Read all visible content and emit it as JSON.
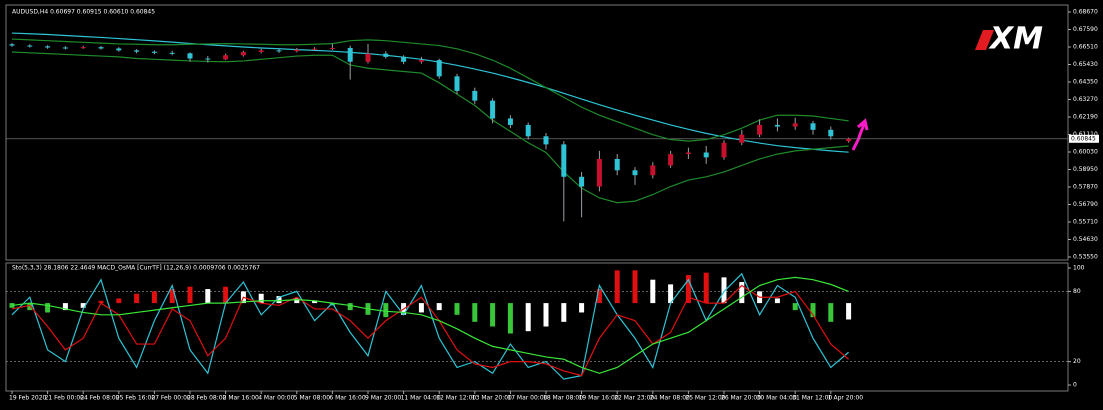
{
  "logo": "XM",
  "chart_data": [
    {
      "type": "candlestick",
      "title": "AUDUSD,H4  0.60697 0.60915 0.60610 0.60845",
      "up_color": "#c8102e",
      "down_color": "#2ec4d6",
      "wick_color": "#9aa0a6",
      "categories": [
        "19 Feb 2020",
        null,
        "21 Feb 00:00",
        null,
        "24 Feb 08:00",
        null,
        "25 Feb 16:00",
        null,
        "27 Feb 00:00",
        null,
        "28 Feb 08:00",
        null,
        "2 Mar 16:00",
        null,
        "4 Mar 00:00",
        null,
        "5 Mar 08:00",
        null,
        "6 Mar 16:00",
        null,
        "9 Mar 20:00",
        null,
        "11 Mar 04:00",
        null,
        "12 Mar 12:00",
        null,
        "13 Mar 20:00",
        null,
        "17 Mar 00:00",
        null,
        "18 Mar 08:00",
        null,
        "19 Mar 16:00",
        null,
        "22 Mar 23:00",
        null,
        "24 Mar 08:00",
        null,
        "25 Mar 12:00",
        null,
        "26 Mar 20:00",
        null,
        "30 Mar 04:00",
        null,
        "31 Mar 12:00",
        null,
        "1 Apr 20:00",
        null
      ],
      "ohlc": [
        [
          0.6668,
          0.6675,
          0.6652,
          0.666
        ],
        [
          0.666,
          0.6668,
          0.6648,
          0.6655
        ],
        [
          0.6655,
          0.6662,
          0.664,
          0.6648
        ],
        [
          0.6648,
          0.6656,
          0.6636,
          0.6645
        ],
        [
          0.6645,
          0.6658,
          0.664,
          0.665
        ],
        [
          0.665,
          0.6657,
          0.6635,
          0.6642
        ],
        [
          0.6642,
          0.665,
          0.6622,
          0.663
        ],
        [
          0.663,
          0.6638,
          0.6612,
          0.6622
        ],
        [
          0.6622,
          0.663,
          0.6606,
          0.6615
        ],
        [
          0.6615,
          0.6628,
          0.66,
          0.6612
        ],
        [
          0.6612,
          0.6618,
          0.656,
          0.658
        ],
        [
          0.658,
          0.6595,
          0.6555,
          0.6575
        ],
        [
          0.6575,
          0.661,
          0.657,
          0.66
        ],
        [
          0.66,
          0.6628,
          0.6592,
          0.662
        ],
        [
          0.662,
          0.664,
          0.6612,
          0.663
        ],
        [
          0.663,
          0.6638,
          0.6615,
          0.6625
        ],
        [
          0.6625,
          0.6645,
          0.6618,
          0.6635
        ],
        [
          0.6635,
          0.665,
          0.6628,
          0.664
        ],
        [
          0.664,
          0.6672,
          0.6632,
          0.6645
        ],
        [
          0.6645,
          0.666,
          0.645,
          0.656
        ],
        [
          0.656,
          0.667,
          0.655,
          0.661
        ],
        [
          0.661,
          0.6625,
          0.658,
          0.659
        ],
        [
          0.659,
          0.66,
          0.6545,
          0.656
        ],
        [
          0.656,
          0.659,
          0.6548,
          0.657
        ],
        [
          0.657,
          0.6578,
          0.6455,
          0.647
        ],
        [
          0.647,
          0.6485,
          0.636,
          0.638
        ],
        [
          0.638,
          0.64,
          0.63,
          0.632
        ],
        [
          0.632,
          0.6335,
          0.618,
          0.621
        ],
        [
          0.621,
          0.623,
          0.615,
          0.617
        ],
        [
          0.617,
          0.6185,
          0.608,
          0.61
        ],
        [
          0.61,
          0.612,
          0.602,
          0.605
        ],
        [
          0.605,
          0.607,
          0.5575,
          0.585
        ],
        [
          0.585,
          0.588,
          0.56,
          0.579
        ],
        [
          0.579,
          0.601,
          0.576,
          0.596
        ],
        [
          0.596,
          0.599,
          0.586,
          0.589
        ],
        [
          0.589,
          0.591,
          0.58,
          0.586
        ],
        [
          0.586,
          0.594,
          0.584,
          0.592
        ],
        [
          0.592,
          0.601,
          0.5905,
          0.599
        ],
        [
          0.599,
          0.603,
          0.596,
          0.6
        ],
        [
          0.6,
          0.604,
          0.593,
          0.597
        ],
        [
          0.597,
          0.6075,
          0.5955,
          0.606
        ],
        [
          0.606,
          0.614,
          0.6045,
          0.611
        ],
        [
          0.611,
          0.6205,
          0.6095,
          0.617
        ],
        [
          0.617,
          0.621,
          0.613,
          0.616
        ],
        [
          0.616,
          0.6215,
          0.614,
          0.618
        ],
        [
          0.618,
          0.6195,
          0.611,
          0.614
        ],
        [
          0.614,
          0.616,
          0.608,
          0.61
        ],
        [
          0.60697,
          0.60915,
          0.6061,
          0.60845
        ]
      ],
      "series": [
        {
          "color": "#2ec4d6",
          "values": [
            0.6737,
            0.6733,
            0.6728,
            0.6722,
            0.6716,
            0.671,
            0.6703,
            0.6696,
            0.6689,
            0.6681,
            0.6673,
            0.6665,
            0.6658,
            0.6651,
            0.6645,
            0.664,
            0.6635,
            0.663,
            0.6625,
            0.6618,
            0.661,
            0.66,
            0.6588,
            0.6575,
            0.6558,
            0.6538,
            0.6515,
            0.649,
            0.6462,
            0.6432,
            0.64,
            0.6365,
            0.633,
            0.6295,
            0.6262,
            0.623,
            0.62,
            0.617,
            0.6143,
            0.6118,
            0.6096,
            0.6076,
            0.6058,
            0.6042,
            0.603,
            0.602,
            0.601,
            0.6002
          ]
        },
        {
          "color": "#1f8a2a",
          "values": [
            0.67,
            0.6695,
            0.669,
            0.6685,
            0.668,
            0.6675,
            0.667,
            0.6668,
            0.6665,
            0.6665,
            0.6668,
            0.667,
            0.6672,
            0.667,
            0.6668,
            0.6665,
            0.6665,
            0.6668,
            0.6672,
            0.669,
            0.6695,
            0.669,
            0.668,
            0.667,
            0.666,
            0.664,
            0.661,
            0.657,
            0.652,
            0.646,
            0.64,
            0.634,
            0.628,
            0.623,
            0.619,
            0.615,
            0.611,
            0.608,
            0.607,
            0.608,
            0.611,
            0.615,
            0.62,
            0.623,
            0.623,
            0.6225,
            0.621,
            0.6195
          ]
        },
        {
          "color": "#1f8a2a",
          "values": [
            0.662,
            0.6615,
            0.661,
            0.6605,
            0.66,
            0.6595,
            0.659,
            0.658,
            0.6575,
            0.657,
            0.6565,
            0.6562,
            0.656,
            0.6565,
            0.6575,
            0.6585,
            0.6595,
            0.66,
            0.66,
            0.654,
            0.652,
            0.651,
            0.65,
            0.649,
            0.643,
            0.636,
            0.629,
            0.62,
            0.613,
            0.606,
            0.6,
            0.588,
            0.578,
            0.572,
            0.569,
            0.57,
            0.574,
            0.579,
            0.583,
            0.585,
            0.588,
            0.592,
            0.596,
            0.599,
            0.601,
            0.602,
            0.603,
            0.604
          ]
        }
      ],
      "last_price": {
        "value": 0.60845,
        "label": "0.60845"
      },
      "ylim": [
        0.5355,
        0.6867
      ],
      "yticks": [
        {
          "value": 0.6867,
          "label": "0.68670"
        },
        {
          "value": 0.6759,
          "label": "0.67590"
        },
        {
          "value": 0.6651,
          "label": "0.66510"
        },
        {
          "value": 0.6543,
          "label": "0.65430"
        },
        {
          "value": 0.6435,
          "label": "0.64350"
        },
        {
          "value": 0.6327,
          "label": "0.63270"
        },
        {
          "value": 0.6219,
          "label": "0.62190"
        },
        {
          "value": 0.6111,
          "label": "0.61110"
        },
        {
          "value": 0.6003,
          "label": "0.60030"
        },
        {
          "value": 0.5895,
          "label": "0.58950"
        },
        {
          "value": 0.5787,
          "label": "0.57870"
        },
        {
          "value": 0.5679,
          "label": "0.56790"
        },
        {
          "value": 0.5571,
          "label": "0.55710"
        },
        {
          "value": 0.5463,
          "label": "0.54630"
        },
        {
          "value": 0.5355,
          "label": "0.53550"
        }
      ]
    },
    {
      "type": "line",
      "title": "Sto(5,3,3) 28.1806 22.4649  MACD_OsMA [CurrTF] (12,26,9) 0.0009706 0.0025767",
      "ylim": [
        0,
        100
      ],
      "yticks": [
        100,
        80,
        20,
        0
      ],
      "levels": [
        80,
        20
      ],
      "y2lim": [
        -0.0035,
        0.0015
      ],
      "series": [
        {
          "color": "#2ec4d6",
          "values": [
            60,
            75,
            30,
            20,
            65,
            90,
            40,
            15,
            55,
            85,
            30,
            10,
            70,
            88,
            60,
            75,
            80,
            55,
            70,
            45,
            25,
            80,
            60,
            85,
            40,
            15,
            20,
            10,
            35,
            15,
            20,
            5,
            8,
            85,
            60,
            40,
            15,
            70,
            90,
            55,
            80,
            95,
            60,
            85,
            75,
            40,
            15,
            28
          ]
        },
        {
          "color": "#e01010",
          "values": [
            65,
            68,
            50,
            30,
            40,
            70,
            60,
            35,
            35,
            65,
            55,
            25,
            40,
            75,
            70,
            68,
            75,
            65,
            65,
            55,
            40,
            55,
            65,
            75,
            55,
            30,
            18,
            15,
            20,
            20,
            18,
            12,
            8,
            40,
            60,
            55,
            35,
            45,
            75,
            70,
            70,
            85,
            75,
            75,
            80,
            60,
            35,
            22
          ]
        },
        {
          "color": "#39e639",
          "values": [
            68,
            70,
            68,
            65,
            62,
            60,
            60,
            62,
            64,
            66,
            68,
            70,
            70,
            71,
            72,
            72,
            73,
            72,
            70,
            68,
            65,
            63,
            62,
            60,
            55,
            48,
            40,
            33,
            30,
            27,
            24,
            22,
            15,
            10,
            15,
            25,
            35,
            40,
            45,
            55,
            65,
            75,
            85,
            90,
            92,
            90,
            86,
            80
          ]
        },
        {
          "type": "bar",
          "axis": "y2",
          "up_color": "#e01010",
          "down_color": "#39c639",
          "neutral_color": "#ffffff",
          "values": [
            -0.0002,
            -0.0003,
            -0.0004,
            -0.0003,
            -0.0002,
            0.0001,
            0.0002,
            0.0004,
            0.0005,
            0.0006,
            0.0007,
            0.0006,
            0.0007,
            0.0005,
            0.0004,
            0.0003,
            0.0002,
            0.0001,
            -0.0001,
            -0.0003,
            -0.0005,
            -0.0006,
            -0.0005,
            -0.0004,
            -0.0003,
            -0.0005,
            -0.0008,
            -0.001,
            -0.0013,
            -0.0012,
            -0.001,
            -0.0008,
            -0.0004,
            0.0006,
            0.0014,
            0.0014,
            0.001,
            0.0008,
            0.0012,
            0.0013,
            0.0011,
            0.0009,
            0.0005,
            0.0002,
            -0.0003,
            -0.0006,
            -0.0008,
            -0.0007
          ]
        }
      ]
    }
  ]
}
